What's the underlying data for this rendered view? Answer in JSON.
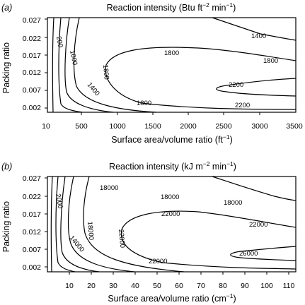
{
  "chart_data": [
    {
      "type": "contour",
      "panel_label": "(a)",
      "title_main": "Reaction intensity (Btu ft",
      "title_exp": "−2",
      "title_end": " min",
      "title_exp2": "−1",
      "title_close": ")",
      "xlabel_main": "Surface area/volume ratio (ft",
      "xlabel_exp": "−1",
      "xlabel_close": ")",
      "ylabel": "Packing ratio",
      "xlim": [
        10,
        3500
      ],
      "ylim": [
        0.0,
        0.027
      ],
      "x_ticks": [
        10,
        500,
        1000,
        1500,
        2000,
        2500,
        3000,
        3500
      ],
      "x_tick_labels": [
        "10",
        "500",
        "1000",
        "1500",
        "2000",
        "2500",
        "3000",
        "3500"
      ],
      "y_ticks": [
        0.002,
        0.007,
        0.012,
        0.017,
        0.022,
        0.027
      ],
      "y_tick_labels": [
        "0.002",
        "0.007",
        "0.012",
        "0.017",
        "0.022",
        "0.027"
      ],
      "contour_labels": [
        "200",
        "1000",
        "1400",
        "1400",
        "1800",
        "1800",
        "1800",
        "1800",
        "2200",
        "2200"
      ],
      "contour_levels": [
        200,
        600,
        1000,
        1400,
        1800,
        2200
      ]
    },
    {
      "type": "contour",
      "panel_label": "(b)",
      "title_main": "Reaction intensity (kJ m",
      "title_exp": "−2",
      "title_end": " min",
      "title_exp2": "−1",
      "title_close": ")",
      "xlabel_main": "Surface area/volume ratio (cm",
      "xlabel_exp": "−1",
      "xlabel_close": ")",
      "ylabel": "Packing ratio",
      "xlim": [
        3,
        117
      ],
      "ylim": [
        0.0,
        0.027
      ],
      "x_ticks": [
        10,
        20,
        30,
        40,
        50,
        60,
        70,
        80,
        90,
        100,
        110
      ],
      "x_tick_labels": [
        "10",
        "20",
        "30",
        "40",
        "50",
        "60",
        "70",
        "80",
        "90",
        "100",
        "110"
      ],
      "y_ticks": [
        0.002,
        0.007,
        0.012,
        0.017,
        0.022,
        0.027
      ],
      "y_tick_labels": [
        "0.002",
        "0.007",
        "0.012",
        "0.017",
        "0.022",
        "0.027"
      ],
      "contour_labels": [
        "2000",
        "18000",
        "18000",
        "18000",
        "18000",
        "14000",
        "22000",
        "22000",
        "22000",
        "22000",
        "26000"
      ],
      "contour_levels": [
        2000,
        6000,
        10000,
        14000,
        18000,
        22000,
        26000
      ]
    }
  ]
}
